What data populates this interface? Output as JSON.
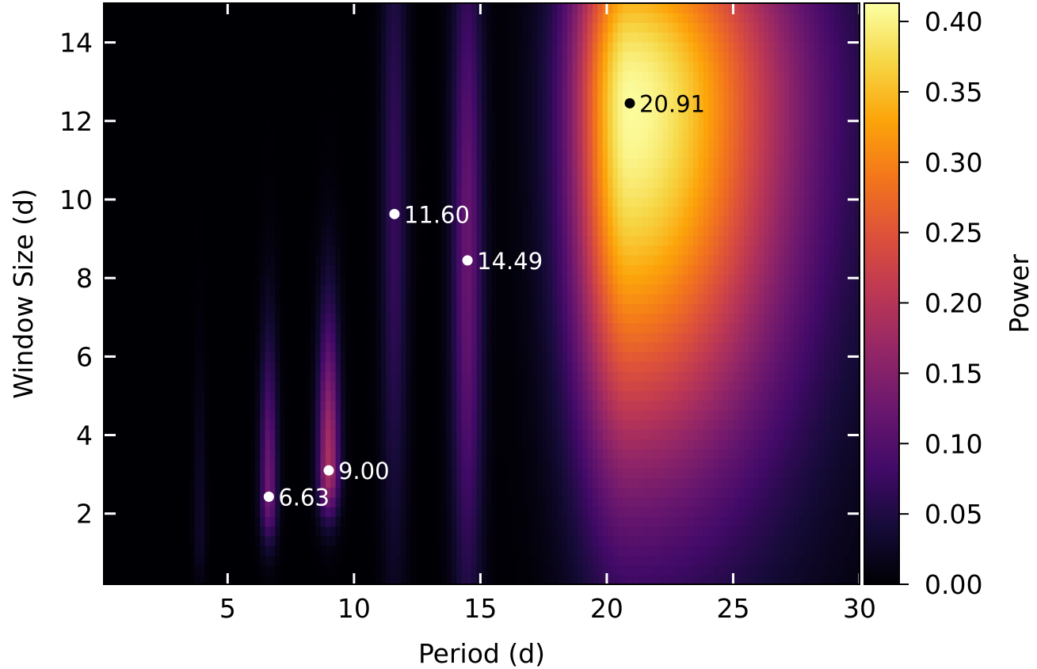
{
  "chart_data": {
    "type": "heatmap",
    "xlabel": "Period (d)",
    "ylabel": "Window Size (d)",
    "colorbar_label": "Power",
    "colormap": "inferno",
    "xlim": [
      0.1,
      30
    ],
    "ylim": [
      0.2,
      15
    ],
    "clim": [
      0.0,
      0.413
    ],
    "x_ticks": [
      5,
      10,
      15,
      20,
      25,
      30
    ],
    "y_ticks": [
      2,
      4,
      6,
      8,
      10,
      12,
      14
    ],
    "colorbar_ticks": [
      "0.00",
      "0.05",
      "0.10",
      "0.15",
      "0.20",
      "0.25",
      "0.30",
      "0.35",
      "0.40"
    ],
    "grid": false,
    "ridges": [
      {
        "period": 3.9,
        "window": 1.5,
        "peak_power": 0.03
      },
      {
        "period": 6.63,
        "window": 2.43,
        "peak_power": 0.13
      },
      {
        "period": 9.0,
        "window": 3.1,
        "peak_power": 0.19
      },
      {
        "period": 11.6,
        "window": 9.63,
        "peak_power": 0.07
      },
      {
        "period": 14.49,
        "window": 8.45,
        "peak_power": 0.12
      },
      {
        "period": 20.91,
        "window": 12.45,
        "peak_power": 0.41
      }
    ],
    "peaks": [
      {
        "label": "6.63",
        "period": 6.63,
        "window": 2.43,
        "color": "#ffffff"
      },
      {
        "label": "9.00",
        "period": 9.0,
        "window": 3.1,
        "color": "#ffffff"
      },
      {
        "label": "11.60",
        "period": 11.6,
        "window": 9.63,
        "color": "#ffffff"
      },
      {
        "label": "14.49",
        "period": 14.49,
        "window": 8.45,
        "color": "#ffffff"
      },
      {
        "label": "20.91",
        "period": 20.91,
        "window": 12.45,
        "color": "#000000"
      }
    ]
  }
}
